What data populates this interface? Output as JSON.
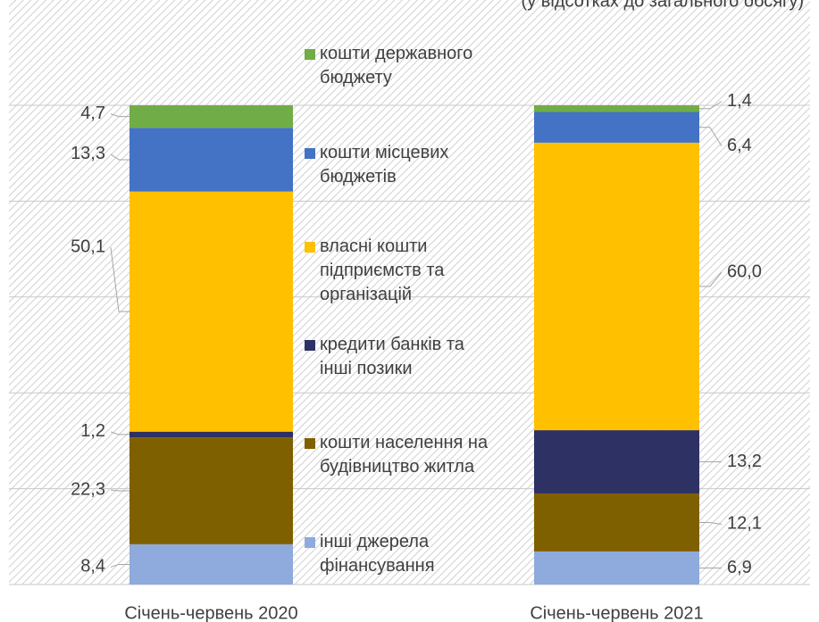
{
  "chart_data": {
    "type": "bar",
    "stacked": true,
    "subtitle": "(у відсотках до загального обсягу)",
    "categories": [
      "Січень-червень 2020",
      "Січень-червень 2021"
    ],
    "ylim": [
      0,
      100
    ],
    "yticks": [
      0,
      20,
      40,
      60,
      80,
      100
    ],
    "grid": true,
    "series": [
      {
        "name": "інші джерела фінансування",
        "color": "#8faadc",
        "values": [
          8.4,
          6.9
        ],
        "value_labels": [
          "8,4",
          "6,9"
        ]
      },
      {
        "name": "кошти населення на будівництво житла",
        "color": "#7f6000",
        "values": [
          22.3,
          12.1
        ],
        "value_labels": [
          "22,3",
          "12,1"
        ]
      },
      {
        "name": "кредити банків та інші позики",
        "color": "#2e3163",
        "values": [
          1.2,
          13.2
        ],
        "value_labels": [
          "1,2",
          "13,2"
        ]
      },
      {
        "name": "власні кошти підприємств та організацій",
        "color": "#ffc000",
        "values": [
          50.1,
          60.0
        ],
        "value_labels": [
          "50,1",
          "60,0"
        ]
      },
      {
        "name": "кошти місцевих бюджетів",
        "color": "#4472c4",
        "values": [
          13.3,
          6.4
        ],
        "value_labels": [
          "13,3",
          "6,4"
        ]
      },
      {
        "name": "кошти державного бюджету",
        "color": "#70ad47",
        "values": [
          4.7,
          1.4
        ],
        "value_labels": [
          "4,7",
          "1,4"
        ]
      }
    ]
  }
}
